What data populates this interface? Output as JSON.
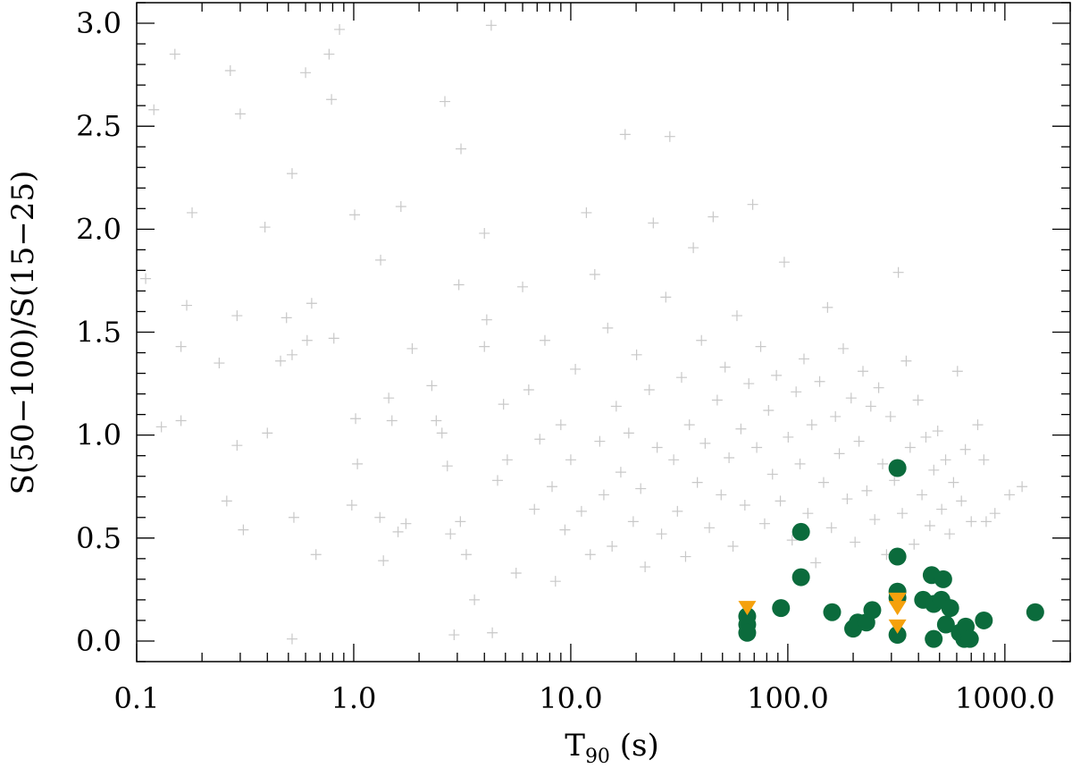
{
  "chart_data": {
    "type": "scatter",
    "title": "",
    "xlabel": {
      "main": "T",
      "sub": "90",
      "unit": " (s)"
    },
    "ylabel": "S(50−100)/S(15−25)",
    "x_scale": "log",
    "xlim": [
      0.1,
      2000
    ],
    "ylim": [
      -0.1,
      3.1
    ],
    "x_tick_labels": [
      {
        "value": 0.1,
        "label": "0.1"
      },
      {
        "value": 1,
        "label": "1.0"
      },
      {
        "value": 10,
        "label": "10.0"
      },
      {
        "value": 100,
        "label": "100.0"
      },
      {
        "value": 1000,
        "label": "1000.0"
      }
    ],
    "y_tick_labels": [
      {
        "value": 0.0,
        "label": "0.0"
      },
      {
        "value": 0.5,
        "label": "0.5"
      },
      {
        "value": 1.0,
        "label": "1.0"
      },
      {
        "value": 1.5,
        "label": "1.5"
      },
      {
        "value": 2.0,
        "label": "2.0"
      },
      {
        "value": 2.5,
        "label": "2.5"
      },
      {
        "value": 3.0,
        "label": "3.0"
      }
    ],
    "grid": false,
    "legend": "none",
    "colors": {
      "background_points": "#c8c8c8",
      "highlight": "#0b6b3c",
      "upper_limit": "#f5a10c"
    },
    "series": [
      {
        "marker": "plus",
        "points": [
          [
            0.11,
            1.76
          ],
          [
            0.12,
            2.58
          ],
          [
            0.13,
            1.04
          ],
          [
            0.15,
            2.85
          ],
          [
            0.16,
            1.43
          ],
          [
            0.16,
            1.07
          ],
          [
            0.17,
            1.63
          ],
          [
            0.18,
            2.08
          ],
          [
            0.24,
            1.35
          ],
          [
            0.26,
            0.68
          ],
          [
            0.27,
            2.77
          ],
          [
            0.29,
            1.58
          ],
          [
            0.29,
            0.95
          ],
          [
            0.3,
            2.56
          ],
          [
            0.31,
            0.54
          ],
          [
            0.4,
            1.01
          ],
          [
            0.39,
            2.01
          ],
          [
            0.46,
            1.36
          ],
          [
            0.49,
            1.57
          ],
          [
            0.52,
            2.27
          ],
          [
            0.53,
            0.6
          ],
          [
            0.52,
            0.01
          ],
          [
            0.52,
            1.39
          ],
          [
            0.6,
            2.76
          ],
          [
            0.61,
            1.46
          ],
          [
            0.64,
            1.64
          ],
          [
            0.67,
            0.42
          ],
          [
            0.77,
            2.85
          ],
          [
            0.79,
            2.63
          ],
          [
            0.81,
            1.47
          ],
          [
            0.86,
            2.97
          ],
          [
            0.98,
            0.66
          ],
          [
            1.01,
            2.07
          ],
          [
            1.02,
            1.08
          ],
          [
            1.04,
            0.86
          ],
          [
            1.32,
            0.6
          ],
          [
            1.33,
            1.85
          ],
          [
            1.37,
            0.39
          ],
          [
            1.45,
            1.18
          ],
          [
            1.5,
            1.07
          ],
          [
            1.6,
            0.53
          ],
          [
            1.65,
            2.11
          ],
          [
            1.74,
            0.57
          ],
          [
            1.86,
            1.42
          ],
          [
            2.29,
            1.24
          ],
          [
            2.4,
            1.07
          ],
          [
            2.55,
            1.01
          ],
          [
            2.63,
            2.62
          ],
          [
            2.7,
            0.85
          ],
          [
            2.79,
            0.52
          ],
          [
            2.9,
            0.03
          ],
          [
            3.05,
            1.73
          ],
          [
            3.12,
            2.39
          ],
          [
            3.1,
            0.58
          ],
          [
            3.3,
            0.42
          ],
          [
            3.6,
            0.2
          ],
          [
            4.0,
            1.98
          ],
          [
            4.1,
            1.56
          ],
          [
            4.3,
            2.99
          ],
          [
            4.35,
            0.04
          ],
          [
            4.0,
            1.43
          ],
          [
            4.6,
            0.78
          ],
          [
            4.9,
            1.15
          ],
          [
            5.1,
            0.88
          ],
          [
            5.6,
            0.33
          ],
          [
            6.0,
            1.72
          ],
          [
            6.4,
            1.22
          ],
          [
            6.8,
            0.64
          ],
          [
            7.2,
            0.98
          ],
          [
            7.6,
            1.46
          ]
        ]
      },
      {
        "marker": "plus",
        "points": [
          [
            8.2,
            0.75
          ],
          [
            8.5,
            0.29
          ],
          [
            9.0,
            1.05
          ],
          [
            9.4,
            0.54
          ],
          [
            10.0,
            0.88
          ],
          [
            10.5,
            1.32
          ],
          [
            11.2,
            0.63
          ],
          [
            11.8,
            2.08
          ],
          [
            12.3,
            0.42
          ],
          [
            12.9,
            1.78
          ],
          [
            13.6,
            0.97
          ],
          [
            14.2,
            0.71
          ],
          [
            14.8,
            1.52
          ],
          [
            15.5,
            0.46
          ],
          [
            16.2,
            1.14
          ],
          [
            17.0,
            0.82
          ],
          [
            17.8,
            2.46
          ],
          [
            18.5,
            1.01
          ],
          [
            19.4,
            0.58
          ],
          [
            20.1,
            1.39
          ],
          [
            21.0,
            0.74
          ],
          [
            22.0,
            0.36
          ],
          [
            23.0,
            1.22
          ],
          [
            24.0,
            2.03
          ],
          [
            25.0,
            0.94
          ],
          [
            26.2,
            0.52
          ],
          [
            27.4,
            1.67
          ],
          [
            28.6,
            2.45
          ],
          [
            29.8,
            0.88
          ],
          [
            31.0,
            0.63
          ],
          [
            32.4,
            1.28
          ],
          [
            33.8,
            0.41
          ],
          [
            35.2,
            1.05
          ],
          [
            36.7,
            1.91
          ],
          [
            38.3,
            0.77
          ],
          [
            40.0,
            1.46
          ],
          [
            41.6,
            0.96
          ],
          [
            43.5,
            0.55
          ],
          [
            45.3,
            2.06
          ],
          [
            47.3,
            1.17
          ],
          [
            49.3,
            0.71
          ],
          [
            51.4,
            1.33
          ],
          [
            53.6,
            0.89
          ],
          [
            55.9,
            0.46
          ],
          [
            58.3,
            1.58
          ],
          [
            60.8,
            1.03
          ],
          [
            63.4,
            0.66
          ],
          [
            66.1,
            1.25
          ],
          [
            68.9,
            2.12
          ],
          [
            71.9,
            0.94
          ],
          [
            75.0,
            1.43
          ],
          [
            78.2,
            0.57
          ],
          [
            81.5,
            1.12
          ],
          [
            85.0,
            0.81
          ],
          [
            88.6,
            1.29
          ],
          [
            92.4,
            0.68
          ],
          [
            96.3,
            1.84
          ],
          [
            100.4,
            0.99
          ],
          [
            104.7,
            0.49
          ],
          [
            109.2,
            1.21
          ]
        ]
      },
      {
        "marker": "plus",
        "points": [
          [
            113.8,
            0.86
          ],
          [
            118.7,
            1.37
          ],
          [
            123.7,
            0.62
          ],
          [
            129.0,
            1.05
          ],
          [
            134.5,
            0.38
          ],
          [
            140.2,
            1.26
          ],
          [
            146.2,
            0.77
          ],
          [
            152.4,
            1.62
          ],
          [
            158.9,
            0.55
          ],
          [
            165.7,
            1.09
          ],
          [
            172.7,
            0.91
          ],
          [
            180.1,
            1.42
          ],
          [
            187.8,
            0.69
          ],
          [
            195.8,
            1.18
          ],
          [
            204.1,
            0.48
          ],
          [
            212.8,
            0.97
          ],
          [
            221.9,
            1.31
          ],
          [
            231.3,
            0.73
          ],
          [
            241.2,
            1.14
          ],
          [
            251.5,
            0.59
          ],
          [
            262.2,
            1.23
          ],
          [
            273.4,
            0.86
          ],
          [
            285.0,
            0.42
          ],
          [
            297.2,
            1.09
          ],
          [
            309.8,
            0.78
          ],
          [
            323.0,
            1.79
          ],
          [
            336.8,
            0.62
          ],
          [
            351.1,
            1.36
          ],
          [
            366.1,
            0.94
          ],
          [
            381.7,
            0.47
          ],
          [
            398.0,
            1.17
          ],
          [
            415.0,
            0.71
          ],
          [
            432.7,
            0.99
          ],
          [
            451.2,
            0.56
          ],
          [
            470.5,
            0.83
          ],
          [
            490.6,
            1.02
          ],
          [
            511.6,
            0.64
          ],
          [
            533.4,
            0.88
          ],
          [
            556.2,
            0.52
          ],
          [
            580.0,
            0.77
          ],
          [
            604.8,
            1.31
          ],
          [
            630.6,
            0.68
          ],
          [
            657.6,
            0.93
          ],
          [
            700.0,
            0.58
          ],
          [
            750.0,
            1.05
          ],
          [
            800.0,
            0.88
          ],
          [
            820.0,
            0.58
          ],
          [
            900.0,
            0.62
          ],
          [
            1050.0,
            0.71
          ],
          [
            1200.0,
            0.75
          ]
        ]
      },
      {
        "marker": "circle",
        "points": [
          [
            65,
            0.12
          ],
          [
            65,
            0.08
          ],
          [
            65,
            0.04
          ],
          [
            93,
            0.16
          ],
          [
            115,
            0.53
          ],
          [
            115,
            0.31
          ],
          [
            160,
            0.14
          ],
          [
            200,
            0.06
          ],
          [
            210,
            0.09
          ],
          [
            230,
            0.09
          ],
          [
            245,
            0.15
          ],
          [
            320,
            0.84
          ],
          [
            320,
            0.41
          ],
          [
            320,
            0.24
          ],
          [
            320,
            0.21
          ],
          [
            320,
            0.03
          ],
          [
            420,
            0.2
          ],
          [
            460,
            0.32
          ],
          [
            470,
            0.01
          ],
          [
            470,
            0.18
          ],
          [
            510,
            0.2
          ],
          [
            520,
            0.3
          ],
          [
            535,
            0.08
          ],
          [
            560,
            0.16
          ],
          [
            620,
            0.04
          ],
          [
            650,
            0.01
          ],
          [
            660,
            0.07
          ],
          [
            690,
            0.01
          ],
          [
            800,
            0.1
          ],
          [
            1380,
            0.14
          ]
        ]
      },
      {
        "marker": "triangle-down",
        "points": [
          [
            65,
            0.16
          ],
          [
            320,
            0.2
          ],
          [
            320,
            0.16
          ],
          [
            320,
            0.07
          ]
        ]
      }
    ]
  }
}
